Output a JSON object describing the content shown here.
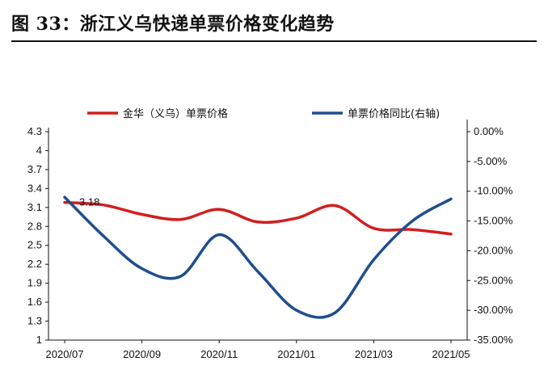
{
  "figure_title": "图  33：浙江义乌快递单票价格变化趋势",
  "colors": {
    "series_price": "#d21e1e",
    "series_yoy": "#1f4e8c",
    "axis": "#111111"
  },
  "chart_data": {
    "type": "line",
    "title": "图  33：浙江义乌快递单票价格变化趋势",
    "x_ticks": [
      "2020/07",
      "2020/09",
      "2020/11",
      "2021/01",
      "2021/03",
      "2021/05"
    ],
    "x": [
      0,
      1,
      2,
      3,
      4,
      5,
      6,
      7,
      8,
      9,
      10
    ],
    "y_left_ticks": [
      "4.3",
      "4",
      "3.7",
      "3.4",
      "3.1",
      "2.8",
      "2.5",
      "2.2",
      "1.9",
      "1.6",
      "1.3",
      "1"
    ],
    "y_right_ticks": [
      "0.00%",
      "-5.00%",
      "-10.00%",
      "-15.00%",
      "-20.00%",
      "-25.00%",
      "-30.00%",
      "-35.00%"
    ],
    "ylim_left": [
      1,
      4.3
    ],
    "ylim_right": [
      -35,
      0
    ],
    "legend_position": "top",
    "grid": false,
    "series": [
      {
        "name": "金华（义乌）单票价格",
        "axis": "left",
        "values": [
          3.18,
          3.14,
          2.99,
          2.91,
          3.07,
          2.87,
          2.93,
          3.13,
          2.77,
          2.75,
          2.68
        ]
      },
      {
        "name": "单票价格同比(右轴)",
        "axis": "right",
        "values": [
          -11.0,
          -17.5,
          -23.0,
          -24.3,
          -17.3,
          -23.5,
          -30.0,
          -30.4,
          -21.5,
          -15.0,
          -11.3
        ]
      }
    ],
    "annotations": [
      {
        "series": 0,
        "index": 0,
        "text": "3.18"
      }
    ]
  }
}
